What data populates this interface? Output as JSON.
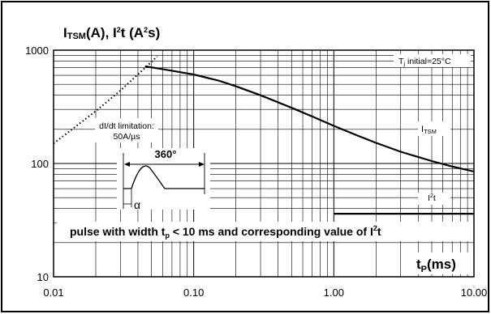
{
  "chart_data": {
    "type": "line",
    "title": "ITSM(A), I²t (A²s)",
    "xlabel": "tp(ms)",
    "ylabel": "",
    "x_scale": "log",
    "y_scale": "log",
    "xlim": [
      0.01,
      10
    ],
    "ylim": [
      10,
      1000
    ],
    "x_ticks": [
      "0.01",
      "0.10",
      "1.00",
      "10.00"
    ],
    "y_ticks": [
      "10",
      "100",
      "1000"
    ],
    "grid": true,
    "series": [
      {
        "name": "ITSM",
        "x": [
          0.045,
          0.06,
          0.1,
          0.15,
          0.2,
          0.3,
          0.5,
          0.7,
          1.0,
          1.5,
          2.0,
          3.0,
          5.0,
          7.0,
          10.0
        ],
        "y": [
          720,
          680,
          610,
          540,
          480,
          400,
          310,
          260,
          215,
          175,
          152,
          127,
          105,
          94,
          85
        ]
      },
      {
        "name": "I²t",
        "x": [
          1.0,
          10.0
        ],
        "y": [
          36,
          36
        ]
      },
      {
        "name": "dI/dt limitation",
        "x": [
          0.01,
          0.02,
          0.03,
          0.045,
          0.055
        ],
        "y": [
          150,
          290,
          440,
          700,
          880
        ]
      }
    ],
    "annotations": {
      "tj_note": "Tj initial=25°C",
      "didt_line1": "dI/dt limitation:",
      "didt_line2": "50A/µs",
      "angle_label": "360°",
      "alpha_label": "α",
      "itsm_label": "ITSM",
      "i2t_label": "I²t",
      "pulse_note": "pulse with width tp < 10 ms and corresponding value of I²t"
    }
  }
}
